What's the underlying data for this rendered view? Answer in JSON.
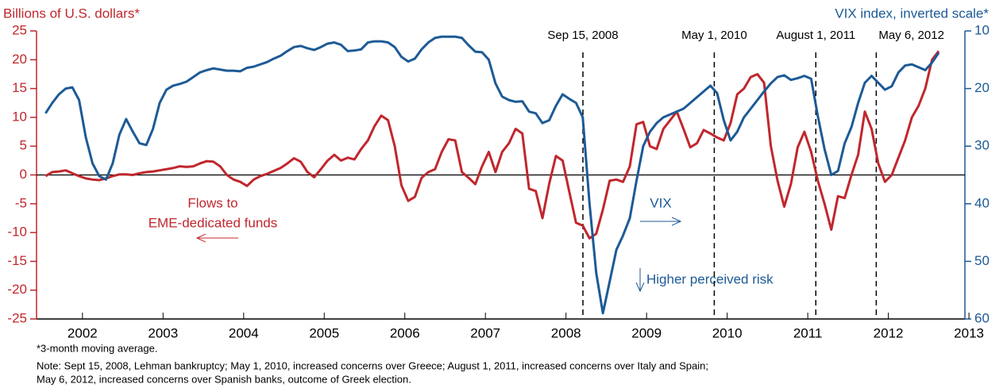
{
  "chart_data": {
    "type": "line",
    "ylabel": "Billions of U.S. dollars*",
    "y2label": "VIX index, inverted scale*",
    "xlim": [
      2001.93,
      2013.45
    ],
    "xticks": [
      {
        "value": 2002.5,
        "label": "2002"
      },
      {
        "value": 2003.5,
        "label": "2003"
      },
      {
        "value": 2004.5,
        "label": "2004"
      },
      {
        "value": 2005.5,
        "label": "2005"
      },
      {
        "value": 2006.5,
        "label": "2006"
      },
      {
        "value": 2007.5,
        "label": "2007"
      },
      {
        "value": 2008.5,
        "label": "2008"
      },
      {
        "value": 2009.5,
        "label": "2009"
      },
      {
        "value": 2010.5,
        "label": "2010"
      },
      {
        "value": 2011.5,
        "label": "2011"
      },
      {
        "value": 2012.5,
        "label": "2012"
      },
      {
        "value": 2013.5,
        "label": "2013"
      }
    ],
    "ylim": [
      -25,
      25
    ],
    "yticks": [
      -25,
      -20,
      -15,
      -10,
      -5,
      0,
      5,
      10,
      15,
      20,
      25
    ],
    "y2lim": [
      60,
      10
    ],
    "y2ticks": [
      10,
      20,
      30,
      40,
      50,
      60
    ],
    "x": [
      2002.042,
      2002.125,
      2002.208,
      2002.292,
      2002.375,
      2002.458,
      2002.542,
      2002.625,
      2002.708,
      2002.792,
      2002.875,
      2002.958,
      2003.042,
      2003.125,
      2003.208,
      2003.292,
      2003.375,
      2003.458,
      2003.542,
      2003.625,
      2003.708,
      2003.792,
      2003.875,
      2003.958,
      2004.042,
      2004.125,
      2004.208,
      2004.292,
      2004.375,
      2004.458,
      2004.542,
      2004.625,
      2004.708,
      2004.792,
      2004.875,
      2004.958,
      2005.042,
      2005.125,
      2005.208,
      2005.292,
      2005.375,
      2005.458,
      2005.542,
      2005.625,
      2005.708,
      2005.792,
      2005.875,
      2005.958,
      2006.042,
      2006.125,
      2006.208,
      2006.292,
      2006.375,
      2006.458,
      2006.542,
      2006.625,
      2006.708,
      2006.792,
      2006.875,
      2006.958,
      2007.042,
      2007.125,
      2007.208,
      2007.292,
      2007.375,
      2007.458,
      2007.542,
      2007.625,
      2007.708,
      2007.792,
      2007.875,
      2007.958,
      2008.042,
      2008.125,
      2008.208,
      2008.292,
      2008.375,
      2008.458,
      2008.542,
      2008.625,
      2008.708,
      2008.792,
      2008.875,
      2008.958,
      2009.042,
      2009.125,
      2009.208,
      2009.292,
      2009.375,
      2009.458,
      2009.542,
      2009.625,
      2009.708,
      2009.792,
      2009.875,
      2009.958,
      2010.042,
      2010.125,
      2010.208,
      2010.292,
      2010.375,
      2010.458,
      2010.542,
      2010.625,
      2010.708,
      2010.792,
      2010.875,
      2010.958,
      2011.042,
      2011.125,
      2011.208,
      2011.292,
      2011.375,
      2011.458,
      2011.542,
      2011.625,
      2011.708,
      2011.792,
      2011.875,
      2011.958,
      2012.042,
      2012.125,
      2012.208,
      2012.292,
      2012.375,
      2012.458,
      2012.542,
      2012.625,
      2012.708,
      2012.792,
      2012.875,
      2012.958,
      2013.042,
      2013.125
    ],
    "series": [
      {
        "color": "#c0272d",
        "values": [
          -0.2,
          0.5,
          0.6,
          0.8,
          0.3,
          -0.2,
          -0.6,
          -0.8,
          -0.9,
          -0.6,
          -0.2,
          0.1,
          0.1,
          0.0,
          0.3,
          0.5,
          0.6,
          0.8,
          1.0,
          1.2,
          1.5,
          1.4,
          1.5,
          2.0,
          2.4,
          2.3,
          1.5,
          0,
          -0.8,
          -1.2,
          -1.9,
          -0.8,
          -0.2,
          0.2,
          0.7,
          1.2,
          2.0,
          2.9,
          2.3,
          0.5,
          -0.4,
          1.0,
          2.5,
          3.5,
          2.5,
          3.0,
          2.7,
          4.5,
          6.0,
          8.5,
          10.3,
          9.5,
          5.0,
          -1.8,
          -4.5,
          -3.8,
          -0.5,
          0.5,
          1.0,
          4.0,
          6.2,
          6.0,
          0.5,
          -0.5,
          -1.6,
          1.5,
          4.0,
          0.5,
          4.0,
          5.5,
          8.0,
          7.2,
          -2.4,
          -2.8,
          -7.5,
          -1.5,
          3.3,
          2.5,
          -3.0,
          -8.3,
          -8.8,
          -11.0,
          -10.2,
          -6.0,
          -1.0,
          -0.8,
          -1.2,
          1.5,
          8.8,
          9.2,
          5.0,
          4.5,
          8.0,
          9.5,
          11.0,
          8.0,
          4.8,
          5.5,
          7.8,
          7.2,
          6.5,
          6.0,
          9.0,
          14.0,
          15.0,
          17.0,
          17.5,
          16.0,
          5.0,
          -1.0,
          -5.5,
          -1.5,
          4.8,
          7.5,
          4.0,
          -1.0,
          -5.0,
          -9.5,
          -3.7,
          -4.0,
          0.0,
          3.5,
          11.0,
          8.0,
          2.0,
          -1.2,
          0.0,
          3.0,
          6.0,
          10.0,
          12.0,
          15.0,
          20.0,
          21.5
        ]
      },
      {
        "color": "#1d5a96",
        "axis": "y2",
        "values": [
          24.3,
          22.5,
          21.0,
          20.0,
          19.8,
          22.0,
          28.5,
          33.0,
          35.2,
          35.8,
          33.0,
          28.0,
          25.3,
          27.5,
          29.5,
          29.8,
          27.0,
          22.5,
          20.2,
          19.5,
          19.2,
          18.8,
          18.0,
          17.2,
          16.8,
          16.5,
          16.7,
          16.9,
          16.9,
          17.0,
          16.4,
          16.2,
          15.8,
          15.4,
          14.8,
          14.3,
          13.5,
          12.8,
          12.6,
          13.0,
          13.3,
          12.8,
          12.2,
          12.0,
          12.4,
          13.5,
          13.4,
          13.2,
          12.0,
          11.8,
          11.8,
          12.0,
          12.8,
          14.5,
          15.3,
          14.8,
          13.2,
          12.0,
          11.2,
          11.0,
          11.0,
          11.0,
          11.2,
          12.5,
          13.6,
          13.7,
          15.0,
          19.1,
          21.4,
          22.0,
          22.3,
          22.2,
          24.0,
          24.3,
          26.0,
          25.5,
          23.0,
          21.0,
          21.8,
          22.5,
          25.0,
          40.0,
          52.0,
          59.0,
          53.5,
          48.0,
          45.5,
          42.5,
          36.0,
          30.0,
          27.5,
          26.0,
          25.0,
          24.5,
          24.0,
          23.5,
          22.5,
          21.5,
          20.5,
          19.5,
          20.8,
          25.5,
          29.0,
          27.5,
          25.0,
          23.5,
          22.0,
          20.5,
          19.1,
          18.0,
          17.7,
          18.5,
          18.2,
          17.8,
          18.3,
          24.8,
          30.5,
          35.0,
          34.3,
          29.5,
          26.7,
          22.5,
          19.0,
          17.8,
          19.0,
          20.2,
          19.6,
          17.2,
          16.0,
          15.8,
          16.3,
          16.8,
          15.5,
          13.8
        ]
      }
    ],
    "event_lines": [
      {
        "x": 2008.71,
        "label": "Sep 15, 2008"
      },
      {
        "x": 2010.34,
        "label": "May 1, 2010"
      },
      {
        "x": 2011.6,
        "label": "August 1, 2011"
      },
      {
        "x": 2012.35,
        "label": "May 6, 2012"
      }
    ],
    "annotations": {
      "flows": [
        "Flows to",
        "EME-dedicated funds"
      ],
      "vix": "VIX",
      "risk": "Higher perceived risk"
    },
    "footnote": "*3-month moving average.",
    "note": [
      "Note: Sept 15, 2008, Lehman bankruptcy; May 1, 2010, increased concerns over Greece; August 1, 2011, increased concerns over Italy and Spain;",
      "May 6, 2012, increased concerns over Spanish banks, outcome of Greek election."
    ]
  }
}
